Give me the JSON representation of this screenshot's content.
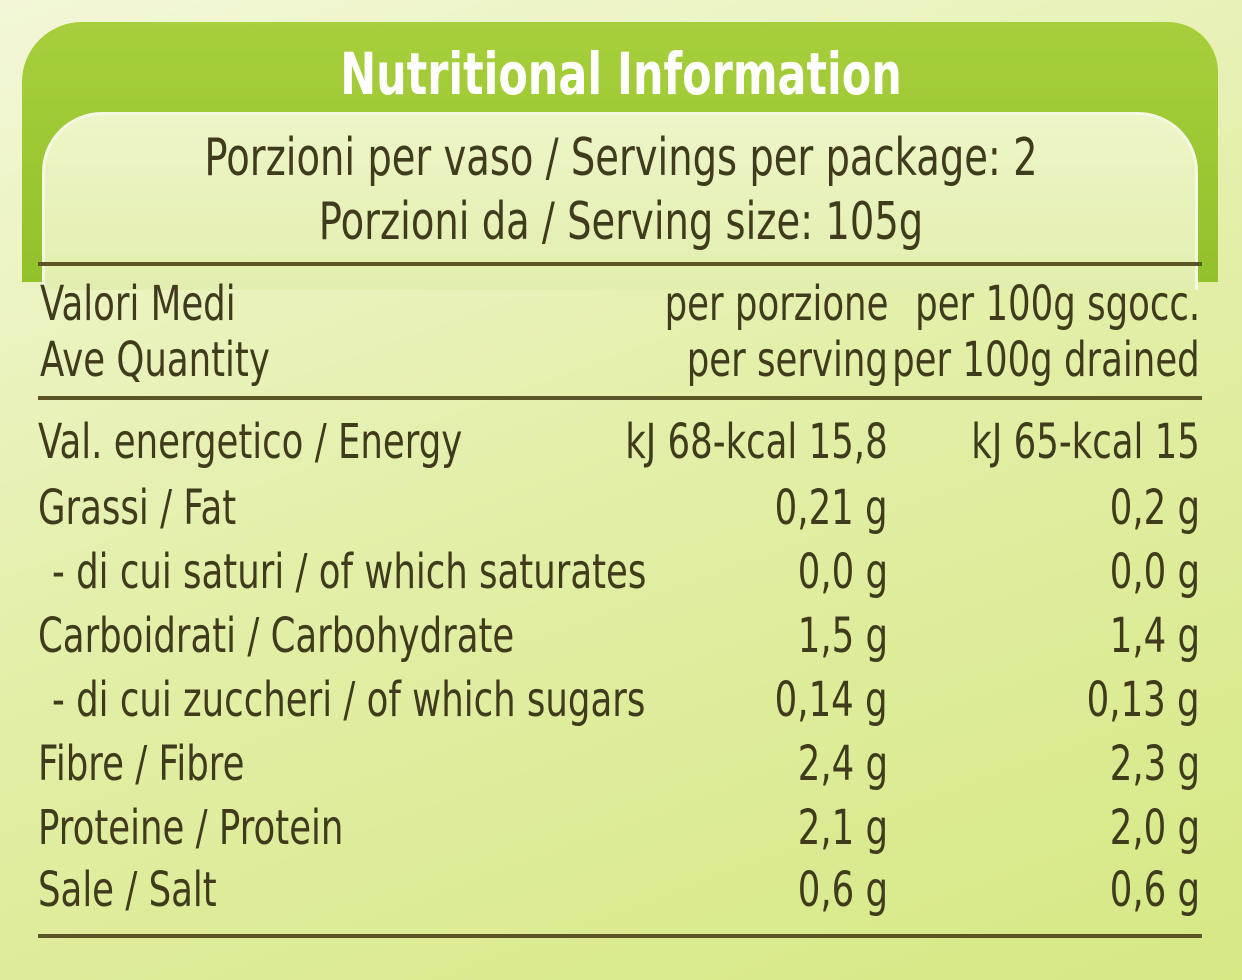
{
  "title": "Nutritional Information",
  "servings_per_package": "Porzioni per vaso / Servings per package: 2",
  "serving_size": "Porzioni da / Serving size: 105g",
  "header": {
    "label_it": "Valori Medi",
    "label_en": "Ave Quantity",
    "col1_it": "per porzione",
    "col1_en": "per serving",
    "col2_it": "per 100g sgocc.",
    "col2_en": "per 100g drained"
  },
  "rows": [
    {
      "label": "Val. energetico / Energy",
      "per_serving": "kJ 68-kcal 15,8",
      "per_100g": "kJ 65-kcal 15"
    },
    {
      "label": "Grassi / Fat",
      "per_serving": "0,21 g",
      "per_100g": "0,2 g"
    },
    {
      "label": "- di cui saturi / of which saturates",
      "per_serving": "0,0 g",
      "per_100g": "0,0 g"
    },
    {
      "label": "Carboidrati / Carbohydrate",
      "per_serving": "1,5 g",
      "per_100g": "1,4 g"
    },
    {
      "label": "- di cui zuccheri / of which sugars",
      "per_serving": "0,14 g",
      "per_100g": "0,13 g"
    },
    {
      "label": "Fibre / Fibre",
      "per_serving": "2,4 g",
      "per_100g": "2,3 g"
    },
    {
      "label": "Proteine / Protein",
      "per_serving": "2,1 g",
      "per_100g": "2,0 g"
    },
    {
      "label": "Sale / Salt",
      "per_serving": "0,6 g",
      "per_100g": "0,6 g"
    }
  ],
  "colors": {
    "banner": "#9cc834",
    "text": "#3f3b1c",
    "background": "#e4efaa"
  }
}
